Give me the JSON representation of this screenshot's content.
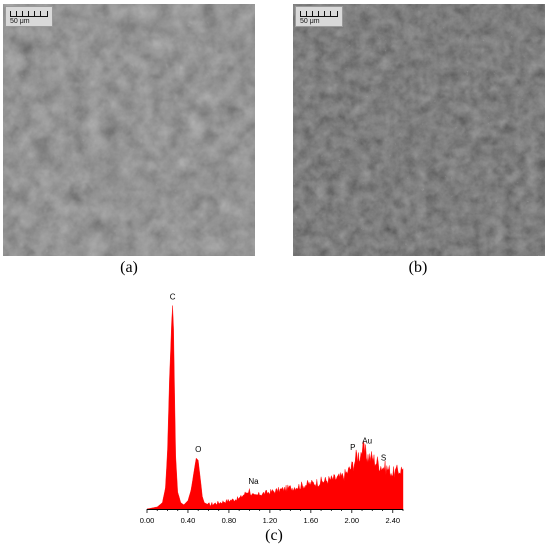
{
  "panels": {
    "a": {
      "caption": "(a)",
      "scale_label": "50 μm"
    },
    "b": {
      "caption": "(b)",
      "scale_label": "50 μm"
    },
    "c": {
      "caption": "(c)"
    }
  },
  "colors": {
    "spectrum_fill": "#ff0000",
    "axis": "#000000",
    "sem_a_base": "#3a3a3a",
    "sem_b_base": "#262626"
  },
  "chart_data": {
    "type": "area",
    "title": "",
    "xlabel": "",
    "ylabel": "",
    "xlim": [
      0.0,
      2.5
    ],
    "ylim": [
      0,
      100
    ],
    "x_ticks": [
      "0.00",
      "0.40",
      "0.80",
      "1.20",
      "1.60",
      "2.00",
      "2.40"
    ],
    "grid": false,
    "series": [
      {
        "x": [
          0.0,
          0.1,
          0.15,
          0.18,
          0.2,
          0.22,
          0.24,
          0.25,
          0.26,
          0.27,
          0.28,
          0.3,
          0.33,
          0.36,
          0.4,
          0.43,
          0.46,
          0.48,
          0.5,
          0.52,
          0.54,
          0.56,
          0.6,
          0.7,
          0.8,
          0.9,
          0.95,
          1.0,
          1.02,
          1.05,
          1.1,
          1.2,
          1.3,
          1.4,
          1.5,
          1.6,
          1.7,
          1.8,
          1.9,
          1.95,
          2.0,
          2.05,
          2.08,
          2.1,
          2.12,
          2.15,
          2.2,
          2.25,
          2.3,
          2.35,
          2.4,
          2.45,
          2.5
        ],
        "y": [
          0,
          1,
          3,
          10,
          28,
          62,
          88,
          96,
          85,
          55,
          25,
          8,
          3,
          2,
          4,
          9,
          18,
          24,
          23,
          15,
          6,
          3,
          2,
          3,
          4,
          5,
          7,
          9,
          7,
          6,
          7,
          8,
          9,
          10,
          11,
          12,
          13,
          14,
          15,
          17,
          20,
          25,
          26,
          28,
          27,
          25,
          24,
          22,
          20,
          19,
          17,
          18,
          19
        ]
      }
    ],
    "annotations": [
      {
        "label": "C",
        "x": 0.25
      },
      {
        "label": "O",
        "x": 0.5
      },
      {
        "label": "Na",
        "x": 1.04
      },
      {
        "label": "P",
        "x": 2.01
      },
      {
        "label": "Au",
        "x": 2.15
      },
      {
        "label": "S",
        "x": 2.31
      }
    ]
  }
}
